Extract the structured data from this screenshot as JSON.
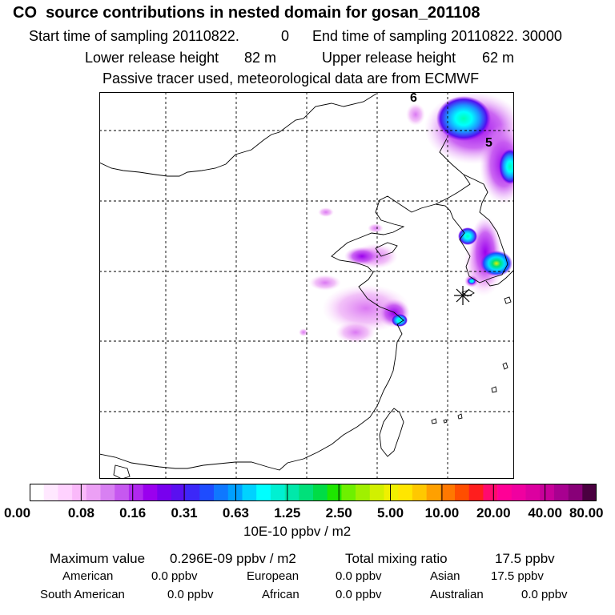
{
  "header": {
    "title": "CO  source contributions in nested domain for gosan_201108",
    "start_label": "Start time of sampling 20110822.",
    "start_value": "0",
    "end_label": "End time of sampling 20110822. 30000",
    "lower_label": "Lower release height",
    "lower_value": "82 m",
    "upper_label": "Upper release height",
    "upper_value": "62 m",
    "note": "Passive tracer used, meteorological data are from ECMWF"
  },
  "map": {
    "markers": [
      {
        "label": "6"
      },
      {
        "label": "5"
      }
    ],
    "receptor": "*",
    "colors": {
      "land_outline": "#000000",
      "grid": "#000000"
    }
  },
  "colorbar": {
    "colors": [
      "#ffffff",
      "#ffe8ff",
      "#ffd2ff",
      "#fab9fa",
      "#eca0f5",
      "#d880f2",
      "#c658f0",
      "#b028ee",
      "#9a00ee",
      "#7800ee",
      "#5a10f0",
      "#3c28f8",
      "#1e4cff",
      "#0f78ff",
      "#00a0ff",
      "#00d2ff",
      "#00ffff",
      "#00f0d2",
      "#00e8aa",
      "#00e07a",
      "#00dc46",
      "#1ee600",
      "#6ef000",
      "#a0f000",
      "#d2f000",
      "#f0f000",
      "#ffe600",
      "#ffc800",
      "#ffa000",
      "#ff7800",
      "#ff4e00",
      "#ff1e1e",
      "#ff0a6e",
      "#ff0096",
      "#f000a0",
      "#dc00a0",
      "#c8009a",
      "#a80090",
      "#880078",
      "#4a0040"
    ],
    "ticks": [
      "0.00",
      "0.08",
      "0.16",
      "0.31",
      "0.63",
      "1.25",
      "2.50",
      "5.00",
      "10.00",
      "20.00",
      "40.00",
      "80.00"
    ],
    "units": "10E-10 ppbv / m2"
  },
  "summary": {
    "max_label": "Maximum value",
    "max_value": "0.296E-09 ppbv / m2",
    "total_label": "Total mixing ratio",
    "total_value": "17.5 ppbv",
    "regions": [
      {
        "name": "American",
        "value": "0.0 ppbv"
      },
      {
        "name": "European",
        "value": "0.0 ppbv"
      },
      {
        "name": "Asian",
        "value": "17.5 ppbv"
      },
      {
        "name": "South American",
        "value": "0.0 ppbv"
      },
      {
        "name": "African",
        "value": "0.0 ppbv"
      },
      {
        "name": "Australian",
        "value": "0.0 ppbv"
      }
    ]
  }
}
